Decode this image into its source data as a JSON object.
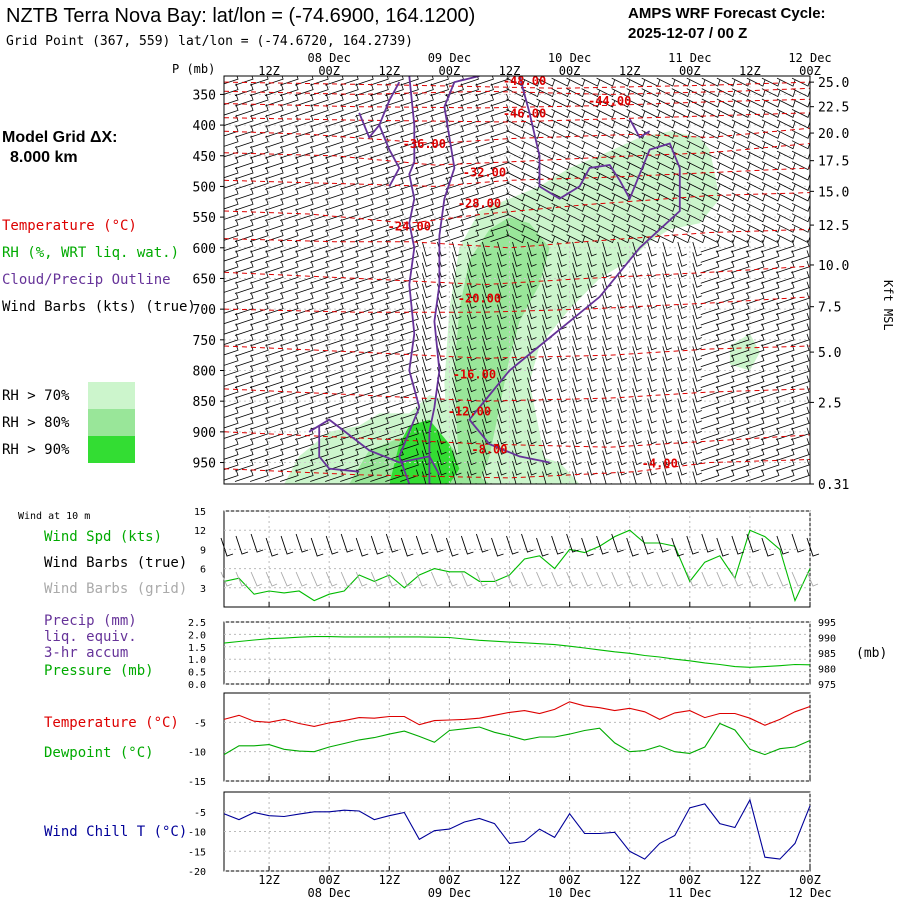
{
  "header": {
    "station_title": "NZTB Terra Nova Bay:  lat/lon = (-74.6900, 164.1200)",
    "grid_point": "Grid Point (367, 559) lat/lon = (-74.6720, 164.2739)",
    "forecast_label": "AMPS WRF Forecast Cycle:",
    "forecast_cycle": "2025-12-07 / 00  Z"
  },
  "sidebar": {
    "model_grid_label": "Model Grid ΔX:",
    "model_grid_value": "8.000 km",
    "legend_temperature": "Temperature (°C)",
    "legend_rh": "RH (%, WRT liq. wat.)",
    "legend_cloud": "Cloud/Precip Outline",
    "legend_wind": "Wind Barbs (kts) (true)",
    "rh_levels": [
      {
        "label": "RH > 70%",
        "color": "#ccf5cc"
      },
      {
        "label": "RH > 80%",
        "color": "#99e699"
      },
      {
        "label": "RH > 90%",
        "color": "#33dd33"
      }
    ]
  },
  "colors": {
    "temperature": "#dd0000",
    "rh": "#00aa00",
    "cloud": "#663399",
    "pressure": "#00bb00",
    "wind_chill": "#000099",
    "grid_wind": "#aaaaaa"
  },
  "time_axis": {
    "hour_labels": [
      "12Z",
      "00Z",
      "12Z",
      "00Z",
      "12Z",
      "00Z",
      "12Z",
      "00Z",
      "12Z",
      "00Z"
    ],
    "hour_values": [
      12,
      24,
      36,
      48,
      60,
      72,
      84,
      96,
      108,
      120
    ],
    "date_labels": [
      "08 Dec",
      "09 Dec",
      "10 Dec",
      "11 Dec",
      "12 Dec"
    ],
    "date_values": [
      24,
      48,
      72,
      96,
      120
    ],
    "range": [
      3,
      120
    ]
  },
  "chart_data": [
    {
      "type": "area",
      "name": "cross-section",
      "title": "NZTB Terra Nova Bay",
      "ylabel": "P (mb)",
      "y2label": "Kft MSL",
      "ylim": [
        985,
        320
      ],
      "pressure_ticks": [
        350,
        400,
        450,
        500,
        550,
        600,
        650,
        700,
        750,
        800,
        850,
        900,
        950
      ],
      "height_ticks": [
        {
          "p": 330,
          "label": "25.0"
        },
        {
          "p": 370,
          "label": "22.5"
        },
        {
          "p": 413,
          "label": "20.0"
        },
        {
          "p": 458,
          "label": "17.5"
        },
        {
          "p": 508,
          "label": "15.0"
        },
        {
          "p": 563,
          "label": "12.5"
        },
        {
          "p": 628,
          "label": "10.0"
        },
        {
          "p": 696,
          "label": "7.5"
        },
        {
          "p": 770,
          "label": "5.0"
        },
        {
          "p": 852,
          "label": "2.5"
        },
        {
          "p": 985,
          "label": "0.31"
        }
      ],
      "temperature_labels": [
        {
          "t": 63,
          "p": 335,
          "label": "-48.00"
        },
        {
          "t": 63,
          "p": 388,
          "label": "-46.00"
        },
        {
          "t": 80,
          "p": 367,
          "label": "-44.00"
        },
        {
          "t": 43,
          "p": 437,
          "label": "-36.00"
        },
        {
          "t": 55,
          "p": 484,
          "label": "-32.00"
        },
        {
          "t": 54,
          "p": 534,
          "label": "-28.00"
        },
        {
          "t": 40,
          "p": 572,
          "label": "-24.00"
        },
        {
          "t": 54,
          "p": 689,
          "label": "-20.00"
        },
        {
          "t": 53,
          "p": 813,
          "label": "-16.00"
        },
        {
          "t": 52,
          "p": 873,
          "label": "-12.00"
        },
        {
          "t": 56,
          "p": 935,
          "label": "-8.00"
        },
        {
          "t": 90,
          "p": 958,
          "label": "-4.00"
        }
      ]
    },
    {
      "type": "line",
      "name": "wind",
      "title": "Wind at 10 m",
      "labels": [
        "Wind Spd (kts)",
        "Wind Barbs (true)",
        "Wind Barbs (grid)"
      ],
      "ylim": [
        0,
        15
      ],
      "ticks": [
        3,
        6,
        9,
        12,
        15
      ],
      "x": [
        3,
        6,
        9,
        12,
        15,
        18,
        21,
        24,
        27,
        30,
        33,
        36,
        39,
        42,
        45,
        48,
        51,
        54,
        57,
        60,
        63,
        66,
        69,
        72,
        75,
        78,
        81,
        84,
        87,
        90,
        93,
        96,
        99,
        102,
        105,
        108,
        111,
        114,
        117,
        120
      ],
      "values": [
        4,
        4.5,
        2,
        2.5,
        2.2,
        2.5,
        1,
        2,
        2.5,
        5,
        4,
        5,
        3,
        5,
        6,
        5.5,
        5.5,
        4,
        4,
        5,
        7.5,
        8,
        6,
        9,
        8.5,
        9.5,
        11,
        12,
        10,
        10,
        9.5,
        4,
        7,
        8,
        4.5,
        12,
        11,
        9,
        1,
        6
      ]
    },
    {
      "type": "line",
      "name": "precip-pressure",
      "labels": [
        "Precip (mm)",
        "liq. equiv.",
        "3-hr accum",
        "Pressure (mb)"
      ],
      "ylabel_right": "(mb)",
      "ylim_left": [
        0,
        2.5
      ],
      "left_ticks": [
        "2.5",
        "2.0",
        "1.5",
        "1.0",
        "0.5",
        "0.0"
      ],
      "ylim_right": [
        975,
        995
      ],
      "right_ticks": [
        995,
        990,
        985,
        980,
        975
      ],
      "x": [
        3,
        6,
        9,
        12,
        15,
        18,
        21,
        24,
        27,
        30,
        33,
        36,
        39,
        42,
        45,
        48,
        51,
        54,
        57,
        60,
        63,
        66,
        69,
        72,
        75,
        78,
        81,
        84,
        87,
        90,
        93,
        96,
        99,
        102,
        105,
        108,
        111,
        114,
        117,
        120
      ],
      "pressure": [
        988.2,
        988.7,
        989.2,
        989.6,
        989.8,
        990.1,
        990.3,
        990.3,
        990.2,
        990.2,
        990.2,
        990.2,
        990.2,
        990.2,
        990.1,
        990,
        989.5,
        989.1,
        988.8,
        988.5,
        988.3,
        988,
        987.7,
        987.2,
        986.6,
        986,
        985.4,
        984.9,
        984.2,
        983.7,
        983,
        982.5,
        981.8,
        981.3,
        980.6,
        980.4,
        980.6,
        980.9,
        981.3,
        981.2
      ]
    },
    {
      "type": "line",
      "name": "temperature-dewpoint",
      "labels": [
        "Temperature (°C)",
        "Dewpoint (°C)"
      ],
      "ylim": [
        -15,
        0
      ],
      "ticks": [
        -5,
        -10,
        -15
      ],
      "x": [
        3,
        6,
        9,
        12,
        15,
        18,
        21,
        24,
        27,
        30,
        33,
        36,
        39,
        42,
        45,
        48,
        51,
        54,
        57,
        60,
        63,
        66,
        69,
        72,
        75,
        78,
        81,
        84,
        87,
        90,
        93,
        96,
        99,
        102,
        105,
        108,
        111,
        114,
        117,
        120
      ],
      "temperature": [
        -4.5,
        -3.8,
        -4.8,
        -5,
        -4.5,
        -5.2,
        -5.7,
        -5.1,
        -4.7,
        -4.2,
        -4.3,
        -4,
        -4,
        -5.4,
        -4.7,
        -4.6,
        -4.5,
        -4.3,
        -3.8,
        -3.3,
        -3,
        -3.5,
        -2.8,
        -1.5,
        -2.2,
        -2.5,
        -3,
        -2.6,
        -3.2,
        -4.5,
        -3.4,
        -3,
        -4.2,
        -3.5,
        -3.5,
        -4.3,
        -5.5,
        -4.5,
        -3.2,
        -2.3
      ],
      "dewpoint": [
        -10.5,
        -9,
        -9,
        -8.8,
        -9.6,
        -9.9,
        -10,
        -9.2,
        -8.6,
        -8,
        -7.6,
        -7,
        -6.5,
        -7.4,
        -8.4,
        -6.4,
        -6.1,
        -5.8,
        -6.7,
        -7.3,
        -8,
        -7.5,
        -7.5,
        -7,
        -6.4,
        -6,
        -8.5,
        -10,
        -9.8,
        -9,
        -10,
        -10.3,
        -9.2,
        -5.2,
        -6.3,
        -9.6,
        -10.5,
        -9.5,
        -9.2,
        -8.1
      ]
    },
    {
      "type": "line",
      "name": "wind-chill",
      "labels": [
        "Wind Chill T (°C)"
      ],
      "ylim": [
        -20,
        0
      ],
      "ticks": [
        -5,
        -10,
        -15,
        -20
      ],
      "x": [
        3,
        6,
        9,
        12,
        15,
        18,
        21,
        24,
        27,
        30,
        33,
        36,
        39,
        42,
        45,
        48,
        51,
        54,
        57,
        60,
        63,
        66,
        69,
        72,
        75,
        78,
        81,
        84,
        87,
        90,
        93,
        96,
        99,
        102,
        105,
        108,
        111,
        114,
        117,
        120
      ],
      "values": [
        -5.5,
        -7,
        -5.2,
        -6,
        -6.2,
        -5.6,
        -5,
        -5,
        -4.6,
        -4.8,
        -7,
        -6,
        -5.2,
        -12,
        -9.8,
        -9.4,
        -7.6,
        -6.7,
        -8,
        -13,
        -12.5,
        -9.4,
        -11.5,
        -5.5,
        -10.5,
        -10.5,
        -10.2,
        -15,
        -17,
        -13,
        -11,
        -4,
        -3,
        -8,
        -9,
        -2,
        -16.5,
        -17,
        -13,
        -3.5
      ]
    }
  ],
  "panels": {
    "wind_title": "Wind at 10 m",
    "wind_spd_label": "Wind Spd (kts)",
    "wind_barbs_true_label": "Wind Barbs (true)",
    "wind_barbs_grid_label": "Wind Barbs (grid)",
    "precip_label_1": "Precip (mm)",
    "precip_label_2": "liq. equiv.",
    "precip_label_3": "3-hr accum",
    "pressure_label": "Pressure (mb)",
    "pressure_unit": "(mb)",
    "temperature_label": "Temperature (°C)",
    "dewpoint_label": "Dewpoint (°C)",
    "wind_chill_label": "Wind Chill T (°C)"
  }
}
